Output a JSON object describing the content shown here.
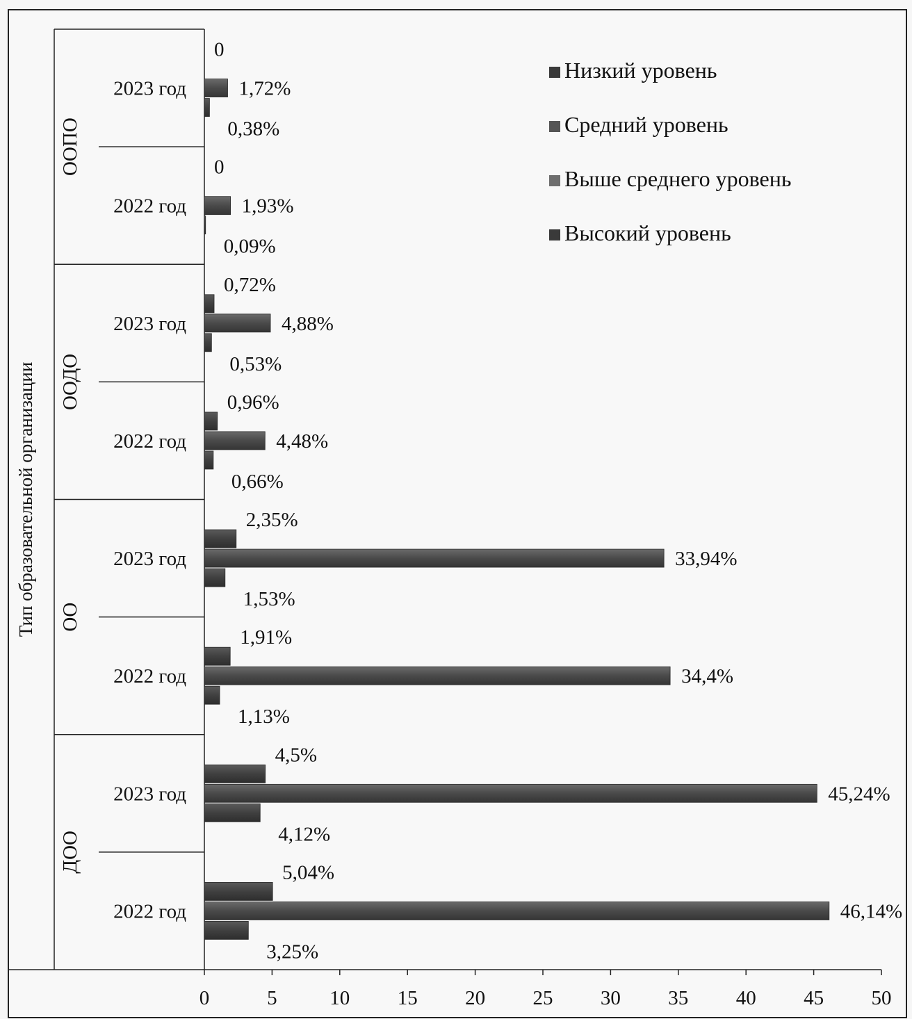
{
  "chart_data": {
    "type": "bar",
    "orientation": "horizontal",
    "yaxis_title": "Тип образовательной организации",
    "xlim": [
      0,
      50
    ],
    "xticks": [
      0,
      5,
      10,
      15,
      20,
      25,
      30,
      35,
      40,
      45,
      50
    ],
    "legend_position": "top-right",
    "legend": [
      {
        "name": "Низкий уровень",
        "color": "#3a3a3a"
      },
      {
        "name": "Средний уровень",
        "color": "#555555"
      },
      {
        "name": "Выше среднего уровень",
        "color": "#6e6e6e"
      },
      {
        "name": "Высокий уровень",
        "color": "#3a3a3a"
      }
    ],
    "groups": [
      {
        "name": "ООПО",
        "rows": [
          {
            "year": "2023 год",
            "bars": [
              {
                "value": 0,
                "label": "0"
              },
              {
                "value": 1.72,
                "label": "1,72%"
              },
              {
                "value": 0.38,
                "label": "0,38%"
              }
            ]
          },
          {
            "year": "2022 год",
            "bars": [
              {
                "value": 0,
                "label": "0"
              },
              {
                "value": 1.93,
                "label": "1,93%"
              },
              {
                "value": 0.09,
                "label": "0,09%"
              }
            ]
          }
        ]
      },
      {
        "name": "ООДО",
        "rows": [
          {
            "year": "2023 год",
            "bars": [
              {
                "value": 0.72,
                "label": "0,72%"
              },
              {
                "value": 4.88,
                "label": "4,88%"
              },
              {
                "value": 0.53,
                "label": "0,53%"
              }
            ]
          },
          {
            "year": "2022 год",
            "bars": [
              {
                "value": 0.96,
                "label": "0,96%"
              },
              {
                "value": 4.48,
                "label": "4,48%"
              },
              {
                "value": 0.66,
                "label": "0,66%"
              }
            ]
          }
        ]
      },
      {
        "name": "ОО",
        "rows": [
          {
            "year": "2023 год",
            "bars": [
              {
                "value": 2.35,
                "label": "2,35%"
              },
              {
                "value": 33.94,
                "label": "33,94%"
              },
              {
                "value": 1.53,
                "label": "1,53%"
              }
            ]
          },
          {
            "year": "2022 год",
            "bars": [
              {
                "value": 1.91,
                "label": "1,91%"
              },
              {
                "value": 34.4,
                "label": "34,4%"
              },
              {
                "value": 1.13,
                "label": "1,13%"
              }
            ]
          }
        ]
      },
      {
        "name": "ДОО",
        "rows": [
          {
            "year": "2023 год",
            "bars": [
              {
                "value": 4.5,
                "label": "4,5%"
              },
              {
                "value": 45.24,
                "label": "45,24%"
              },
              {
                "value": 4.12,
                "label": "4,12%"
              }
            ]
          },
          {
            "year": "2022 год",
            "bars": [
              {
                "value": 5.04,
                "label": "5,04%"
              },
              {
                "value": 46.14,
                "label": "46,14%"
              },
              {
                "value": 3.25,
                "label": "3,25%"
              }
            ]
          }
        ]
      }
    ]
  }
}
